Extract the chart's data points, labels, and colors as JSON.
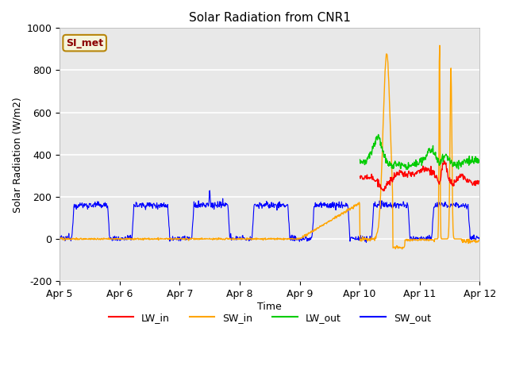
{
  "title": "Solar Radiation from CNR1",
  "xlabel": "Time",
  "ylabel": "Solar Radiation (W/m2)",
  "ylim": [
    -200,
    1000
  ],
  "xlim": [
    0,
    7
  ],
  "plot_bg_color": "#e8e8e8",
  "fig_bg_color": "#ffffff",
  "annotation_text": "SI_met",
  "annotation_color": "#8B0000",
  "annotation_bg": "#f5f5dc",
  "annotation_border": "#b8860b",
  "series_colors": {
    "LW_in": "#ff0000",
    "SW_in": "#ffa500",
    "LW_out": "#00cc00",
    "SW_out": "#0000ff"
  },
  "tick_labels": [
    "Apr 5",
    "Apr 6",
    "Apr 7",
    "Apr 8",
    "Apr 9",
    "Apr 10",
    "Apr 11",
    "Apr 12"
  ],
  "tick_positions": [
    0,
    1,
    2,
    3,
    4,
    5,
    6,
    7
  ],
  "yticks": [
    -200,
    0,
    200,
    400,
    600,
    800,
    1000
  ]
}
